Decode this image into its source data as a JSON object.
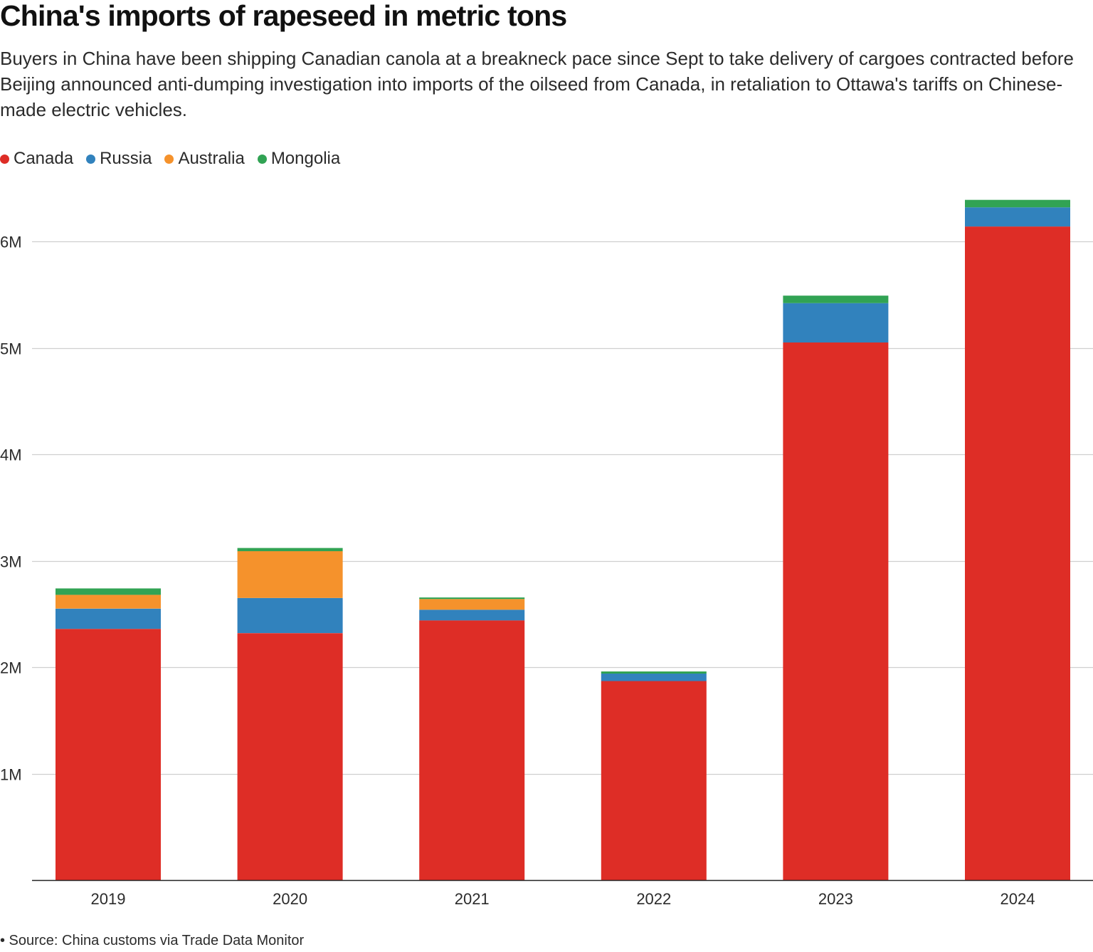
{
  "header": {
    "title": "China's imports of rapeseed in metric tons",
    "subtitle": "Buyers in China have been shipping Canadian canola at a breakneck pace since Sept to take delivery of cargoes contracted before Beijing announced anti-dumping investigation into imports of the oilseed from Canada, in retaliation to Ottawa's tariffs on Chinese-made electric vehicles."
  },
  "legend": {
    "items": [
      {
        "label": "Canada",
        "color": "#de2d26"
      },
      {
        "label": "Russia",
        "color": "#3182bd"
      },
      {
        "label": "Australia",
        "color": "#f5922c"
      },
      {
        "label": "Mongolia",
        "color": "#31a354"
      }
    ]
  },
  "footer": {
    "source": "• Source: China customs via Trade Data Monitor"
  },
  "chart_data": {
    "type": "bar",
    "stacked": true,
    "title": "China's imports of rapeseed in metric tons",
    "xlabel": "",
    "ylabel": "",
    "categories": [
      "2019",
      "2020",
      "2021",
      "2022",
      "2023",
      "2024"
    ],
    "series": [
      {
        "name": "Canada",
        "color": "#de2d26",
        "values": [
          2360000,
          2320000,
          2440000,
          1870000,
          5050000,
          6140000
        ]
      },
      {
        "name": "Russia",
        "color": "#3182bd",
        "values": [
          190000,
          330000,
          100000,
          70000,
          370000,
          180000
        ]
      },
      {
        "name": "Australia",
        "color": "#f5922c",
        "values": [
          130000,
          440000,
          100000,
          0,
          0,
          0
        ]
      },
      {
        "name": "Mongolia",
        "color": "#31a354",
        "values": [
          60000,
          30000,
          15000,
          20000,
          70000,
          70000
        ]
      }
    ],
    "ylim": [
      0,
      6500000
    ],
    "yticks": [
      1000000,
      2000000,
      3000000,
      4000000,
      5000000,
      6000000
    ],
    "ytick_labels": [
      "1M",
      "2M",
      "3M",
      "4M",
      "5M",
      "6M"
    ],
    "grid": true,
    "legend_position": "top-left"
  }
}
